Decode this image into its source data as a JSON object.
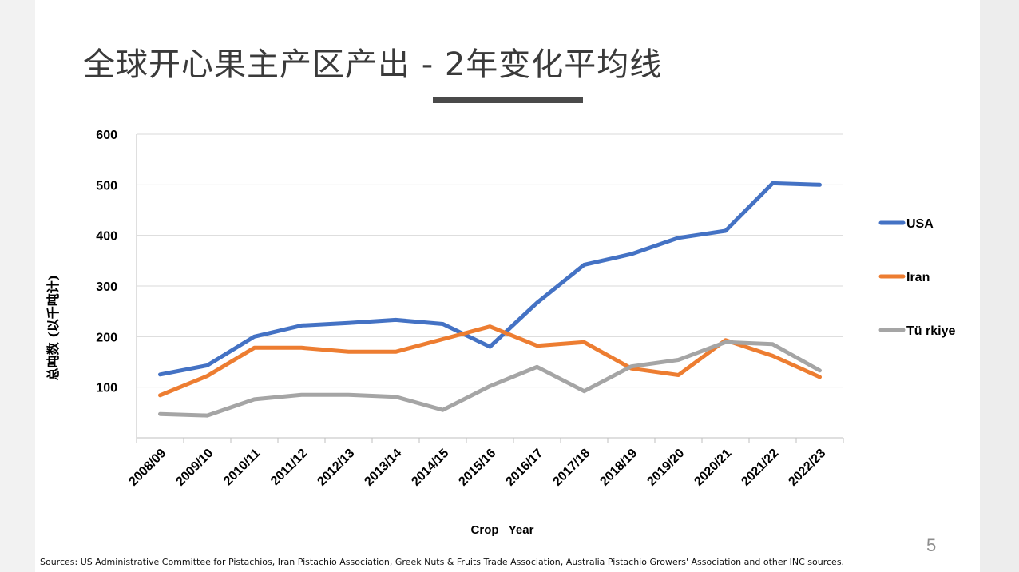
{
  "slide": {
    "title": "全球开心果主产区产出 - 2年变化平均线",
    "page_number": "5",
    "sources": "Sources: US Administrative Committee for Pistachios, Iran Pistachio Association, Greek Nuts & Fruits Trade Association, Australia Pistachio Growers' Association and other INC sources."
  },
  "chart_data": {
    "type": "line",
    "title": "",
    "xlabel": "Crop   Year",
    "ylabel": "总吨数 (以千吨计)",
    "ylim": [
      0,
      600
    ],
    "yticks": [
      100,
      200,
      300,
      400,
      500,
      600
    ],
    "grid": true,
    "legend_position": "right",
    "categories": [
      "2008/09",
      "2009/10",
      "2010/11",
      "2011/12",
      "2012/13",
      "2013/14",
      "2014/15",
      "2015/16",
      "2016/17",
      "2017/18",
      "2018/19",
      "2019/20",
      "2020/21",
      "2021/22",
      "2022/23"
    ],
    "series": [
      {
        "name": "USA",
        "color": "#4472c4",
        "values": [
          125,
          143,
          200,
          222,
          227,
          233,
          225,
          180,
          267,
          342,
          363,
          395,
          409,
          503,
          500
        ]
      },
      {
        "name": "Iran",
        "color": "#ed7d31",
        "values": [
          84,
          122,
          178,
          178,
          170,
          170,
          195,
          220,
          182,
          189,
          137,
          124,
          193,
          162,
          120
        ]
      },
      {
        "name": "Tü rkiye",
        "color": "#a5a5a5",
        "values": [
          47,
          44,
          76,
          85,
          85,
          81,
          55,
          102,
          140,
          92,
          141,
          154,
          189,
          185,
          133
        ]
      }
    ]
  }
}
